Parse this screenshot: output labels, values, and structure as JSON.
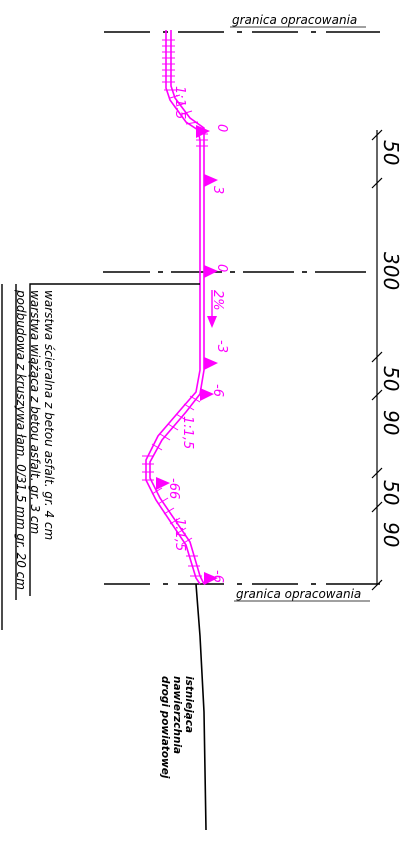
{
  "boundary_label": "granica  opracowania",
  "slope_label": "1:1,5",
  "cross_fall_label": "2%",
  "levels": [
    "0",
    "3",
    "0",
    "-3",
    "-6",
    "-66",
    "-6"
  ],
  "dimensions": [
    "50",
    "300",
    "50",
    "90",
    "50",
    "90"
  ],
  "layers": [
    "warstwa  ścieralna z betou asfalt. gr. 4 cm",
    "warstwa  wiążąca z betou asfalt. gr. 3 cm",
    "podbudowa z kruszywa łam. 0/31,5 mm gr. 20 cm"
  ],
  "existing_surface": [
    "istniejąca",
    "nawierzchnia",
    "drogi powiatowej"
  ],
  "colors": {
    "design": "#ff00ff",
    "lines": "#000000"
  }
}
